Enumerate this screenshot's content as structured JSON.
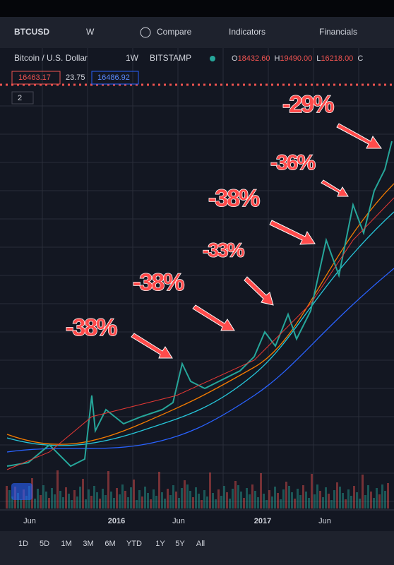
{
  "toolbar": {
    "symbol": "BTCUSD",
    "interval": "W",
    "compare": "Compare",
    "indicators": "Indicators",
    "financials": "Financials"
  },
  "legend": {
    "name": "Bitcoin / U.S. Dollar",
    "timeframe": "1W",
    "exchange": "BITSTAMP",
    "ohlc": [
      {
        "label": "O",
        "value": "18432.60"
      },
      {
        "label": "H",
        "value": "19490.00"
      },
      {
        "label": "L",
        "value": "16218.00"
      },
      {
        "label": "C",
        "value": ""
      }
    ],
    "bid": "16463.17",
    "spread": "23.75",
    "ask": "16486.92",
    "indicator_count": "2"
  },
  "annotations": [
    "-29%",
    "-36%",
    "-38%",
    "-33%",
    "-38%",
    "-38%"
  ],
  "x_axis": [
    "Jun",
    "2016",
    "Jun",
    "2017",
    "Jun"
  ],
  "timeframes": [
    "1D",
    "5D",
    "1M",
    "3M",
    "6M",
    "YTD",
    "1Y",
    "5Y",
    "All"
  ]
}
